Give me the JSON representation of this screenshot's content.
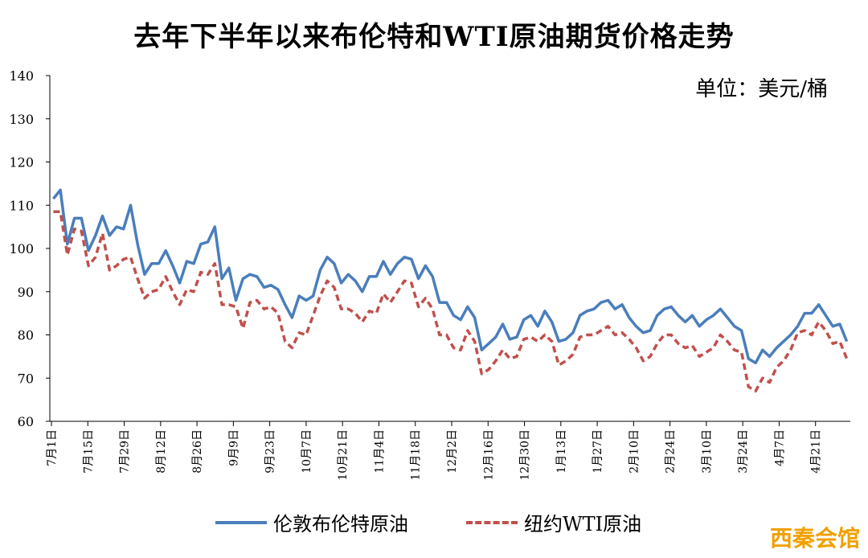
{
  "chart_data": {
    "type": "line",
    "title": "去年下半年以来布伦特和WTI原油期货价格走势",
    "unit": "单位：美元/桶",
    "ylim": [
      60,
      140
    ],
    "yticks": [
      60,
      70,
      80,
      90,
      100,
      110,
      120,
      130,
      140
    ],
    "xticks": [
      "7月1日",
      "7月15日",
      "7月29日",
      "8月12日",
      "8月26日",
      "9月9日",
      "9月23日",
      "10月7日",
      "10月21日",
      "11月4日",
      "11月18日",
      "12月2日",
      "12月16日",
      "12月30日",
      "1月13日",
      "1月27日",
      "2月10日",
      "2月24日",
      "3月10日",
      "3月24日",
      "4月7日",
      "4月21日"
    ],
    "grid": false,
    "legend_position": "bottom",
    "series": [
      {
        "name": "伦敦布伦特原油",
        "color": "#4a7ebb",
        "style": "solid",
        "values": [
          111.5,
          113.5,
          101,
          107,
          107,
          99.5,
          103,
          107.5,
          103,
          105,
          104.5,
          110,
          101,
          94,
          96.5,
          96.5,
          99.5,
          96,
          92,
          97,
          96.5,
          101,
          101.5,
          105,
          93,
          95.5,
          88,
          93,
          94,
          93.5,
          91,
          91.5,
          90.5,
          87,
          84,
          89,
          88,
          89,
          95,
          98,
          96.5,
          92,
          94,
          92.5,
          90,
          93.5,
          93.5,
          97,
          94,
          96.5,
          98,
          97.5,
          93,
          96,
          93.5,
          87.5,
          87.5,
          84.5,
          83.5,
          86.5,
          84,
          76.5,
          78,
          79.5,
          82.5,
          79,
          79.5,
          83.5,
          84.5,
          82,
          85.5,
          83,
          78.5,
          79,
          80.5,
          84.5,
          85.5,
          86,
          87.5,
          88,
          86,
          87,
          84,
          82,
          80.5,
          81,
          84.5,
          86,
          86.5,
          84.5,
          83,
          84.5,
          82,
          83.5,
          84.5,
          86,
          84,
          82,
          81,
          74.5,
          73.5,
          76.5,
          75,
          77,
          78.5,
          80,
          82,
          85,
          85,
          87,
          84.5,
          82,
          82.5,
          78.5
        ]
      },
      {
        "name": "纽约WTI原油",
        "color": "#c0504d",
        "style": "dashed",
        "values": [
          108.5,
          108.5,
          98.5,
          104.5,
          104,
          96,
          98,
          103.5,
          95,
          96,
          97.5,
          98,
          93,
          88.5,
          90,
          90.5,
          93.5,
          90,
          87,
          90.5,
          90,
          94.5,
          94,
          96.5,
          87,
          87,
          86.5,
          81.5,
          87.5,
          88,
          86,
          86.5,
          85,
          78.5,
          77,
          80.5,
          80,
          84.5,
          89,
          92.5,
          91,
          86,
          86,
          85,
          83,
          85.5,
          85,
          89.5,
          87.5,
          90,
          92.5,
          92,
          86.5,
          88.5,
          86,
          80,
          80,
          77,
          76.5,
          81,
          78.5,
          71,
          72,
          74,
          76.5,
          74.5,
          75,
          79,
          79.5,
          78.5,
          80,
          78.5,
          73,
          74,
          75.5,
          79.5,
          80,
          80,
          81,
          82,
          80,
          80.5,
          79,
          77,
          74,
          75,
          78,
          80,
          80,
          78,
          77,
          77.5,
          75,
          76,
          77,
          80,
          78.5,
          76.5,
          76,
          68,
          67,
          70,
          69,
          72.5,
          74,
          76.5,
          80.5,
          81,
          80,
          83,
          81,
          78,
          78.5,
          74.5
        ]
      }
    ]
  },
  "watermark": "西秦会馆"
}
